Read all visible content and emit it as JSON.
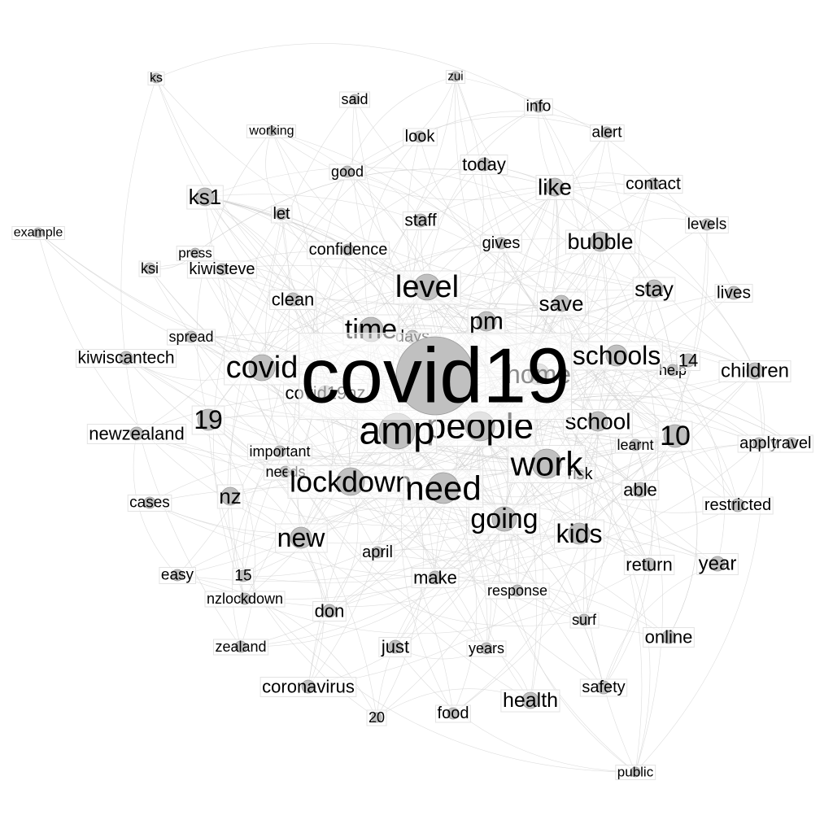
{
  "colors": {
    "background": "#ffffff",
    "node_fill": "#c0c0c0",
    "edge": "#d2d2d2",
    "label": "#000000"
  },
  "nodes": [
    {
      "id": "covid19",
      "label": "covid19"
    },
    {
      "id": "amp",
      "label": "amp"
    },
    {
      "id": "people",
      "label": "people"
    },
    {
      "id": "need",
      "label": "need"
    },
    {
      "id": "work",
      "label": "work"
    },
    {
      "id": "lockdown",
      "label": "lockdown"
    },
    {
      "id": "level",
      "label": "level"
    },
    {
      "id": "covid",
      "label": "covid"
    },
    {
      "id": "time",
      "label": "time"
    },
    {
      "id": "home",
      "label": "home"
    },
    {
      "id": "schools",
      "label": "schools"
    },
    {
      "id": "going",
      "label": "going"
    },
    {
      "id": "kids",
      "label": "kids"
    },
    {
      "id": "new",
      "label": "new"
    },
    {
      "id": "school",
      "label": "school"
    },
    {
      "id": "pm",
      "label": "pm"
    },
    {
      "id": "10",
      "label": "10"
    },
    {
      "id": "19",
      "label": "19"
    },
    {
      "id": "bubble",
      "label": "bubble"
    },
    {
      "id": "stay",
      "label": "stay"
    },
    {
      "id": "like",
      "label": "like"
    },
    {
      "id": "save",
      "label": "save"
    },
    {
      "id": "children",
      "label": "children"
    },
    {
      "id": "ks1",
      "label": "ks1"
    },
    {
      "id": "nz",
      "label": "nz"
    },
    {
      "id": "health",
      "label": "health"
    },
    {
      "id": "covid19nz",
      "label": "covid19nz"
    },
    {
      "id": "days",
      "label": "days"
    },
    {
      "id": "14",
      "label": "14"
    },
    {
      "id": "help",
      "label": "help"
    },
    {
      "id": "risk",
      "label": "risk"
    },
    {
      "id": "able",
      "label": "able"
    },
    {
      "id": "learnt",
      "label": "learnt"
    },
    {
      "id": "apply",
      "label": "apply"
    },
    {
      "id": "travel",
      "label": "travel"
    },
    {
      "id": "restricted",
      "label": "restricted"
    },
    {
      "id": "year",
      "label": "year"
    },
    {
      "id": "return",
      "label": "return"
    },
    {
      "id": "online",
      "label": "online"
    },
    {
      "id": "safety",
      "label": "safety"
    },
    {
      "id": "surf",
      "label": "surf"
    },
    {
      "id": "response",
      "label": "response"
    },
    {
      "id": "years",
      "label": "years"
    },
    {
      "id": "food",
      "label": "food"
    },
    {
      "id": "20",
      "label": "20"
    },
    {
      "id": "public",
      "label": "public"
    },
    {
      "id": "just",
      "label": "just"
    },
    {
      "id": "make",
      "label": "make"
    },
    {
      "id": "april",
      "label": "april"
    },
    {
      "id": "don",
      "label": "don"
    },
    {
      "id": "coronavirus",
      "label": "coronavirus"
    },
    {
      "id": "zealand",
      "label": "zealand"
    },
    {
      "id": "nzlockdown",
      "label": "nzlockdown"
    },
    {
      "id": "15",
      "label": "15"
    },
    {
      "id": "easy",
      "label": "easy"
    },
    {
      "id": "cases",
      "label": "cases"
    },
    {
      "id": "newzealand",
      "label": "newzealand"
    },
    {
      "id": "important",
      "label": "important"
    },
    {
      "id": "needs",
      "label": "needs"
    },
    {
      "id": "kiwiscantech",
      "label": "kiwiscantech"
    },
    {
      "id": "spread",
      "label": "spread"
    },
    {
      "id": "clean",
      "label": "clean"
    },
    {
      "id": "ksi",
      "label": "ksi"
    },
    {
      "id": "kiwisteve",
      "label": "kiwisteve"
    },
    {
      "id": "press",
      "label": "press"
    },
    {
      "id": "example",
      "label": "example"
    },
    {
      "id": "let",
      "label": "let"
    },
    {
      "id": "confidence",
      "label": "confidence"
    },
    {
      "id": "staff",
      "label": "staff"
    },
    {
      "id": "gives",
      "label": "gives"
    },
    {
      "id": "good",
      "label": "good"
    },
    {
      "id": "working",
      "label": "working"
    },
    {
      "id": "ks",
      "label": "ks"
    },
    {
      "id": "said",
      "label": "said"
    },
    {
      "id": "look",
      "label": "look"
    },
    {
      "id": "zui",
      "label": "zui"
    },
    {
      "id": "today",
      "label": "today"
    },
    {
      "id": "info",
      "label": "info"
    },
    {
      "id": "alert",
      "label": "alert"
    },
    {
      "id": "contact",
      "label": "contact"
    },
    {
      "id": "levels",
      "label": "levels"
    },
    {
      "id": "lives",
      "label": "lives"
    }
  ]
}
